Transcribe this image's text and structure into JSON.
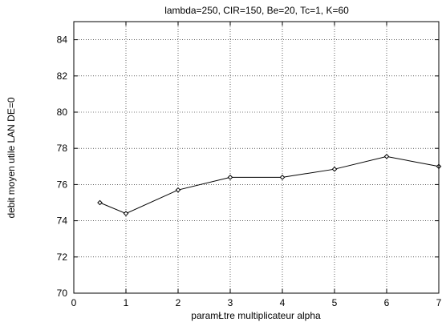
{
  "chart_data": {
    "type": "line",
    "title": "lambda=250, CIR=150, Be=20, Tc=1, K=60",
    "xlabel": "paramŁtre multiplicateur alpha",
    "ylabel": "debit moyen utile LAN DE=0",
    "xlim": [
      0,
      7
    ],
    "ylim": [
      70,
      85
    ],
    "xticks": [
      0,
      1,
      2,
      3,
      4,
      5,
      6,
      7
    ],
    "yticks": [
      70,
      72,
      74,
      76,
      78,
      80,
      82,
      84
    ],
    "grid": true,
    "series": [
      {
        "points": [
          {
            "x": 0.5,
            "y": 75.0
          },
          {
            "x": 1,
            "y": 74.4
          },
          {
            "x": 2,
            "y": 75.7
          },
          {
            "x": 3,
            "y": 76.4
          },
          {
            "x": 4,
            "y": 76.4
          },
          {
            "x": 5,
            "y": 76.85
          },
          {
            "x": 6,
            "y": 77.55
          },
          {
            "x": 7,
            "y": 77.0
          }
        ],
        "marker": "diamond",
        "color": "#000000"
      }
    ]
  }
}
